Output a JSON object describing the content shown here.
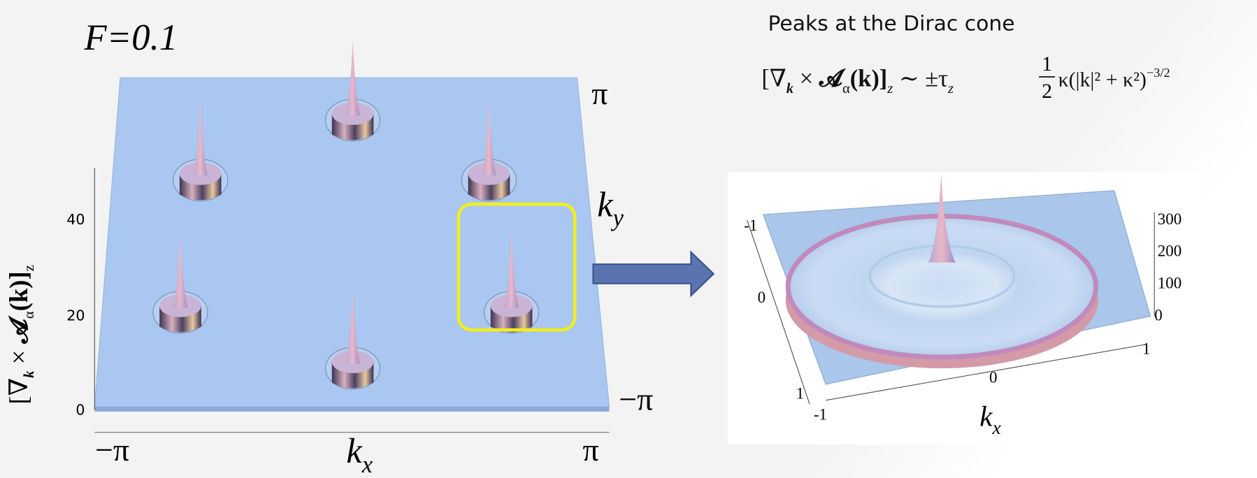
{
  "slide": {
    "left_plot": {
      "label": "F=0.1",
      "y_axis_label": [
        "[∇",
        "k",
        " × ",
        "𝓐",
        "α",
        "(k)]",
        "z"
      ],
      "y_ticks": [
        "0",
        "20",
        "40"
      ],
      "x_axis_label": [
        "k",
        "x"
      ],
      "x_ticks": [
        "−π",
        "π"
      ],
      "ky_axis_label": [
        "k",
        "y"
      ],
      "ky_ticks": [
        "π",
        "−π"
      ]
    },
    "caption": {
      "title": "Peaks at the Dirac cone",
      "formula": [
        "[∇",
        "k",
        " × ",
        "𝓐",
        "α",
        "(k)]",
        "z",
        " ∼ ±τ",
        "z",
        "1",
        "2",
        "κ(|k|² + κ²)",
        "−3/2"
      ]
    },
    "right_plot": {
      "z_ticks": [
        "300",
        "200",
        "100",
        "0"
      ],
      "ky_ticks": [
        "-1",
        "0",
        "1"
      ],
      "kx_ticks": [
        "-1",
        "0",
        "1"
      ],
      "x_axis_label": [
        "k",
        "x"
      ]
    }
  }
}
